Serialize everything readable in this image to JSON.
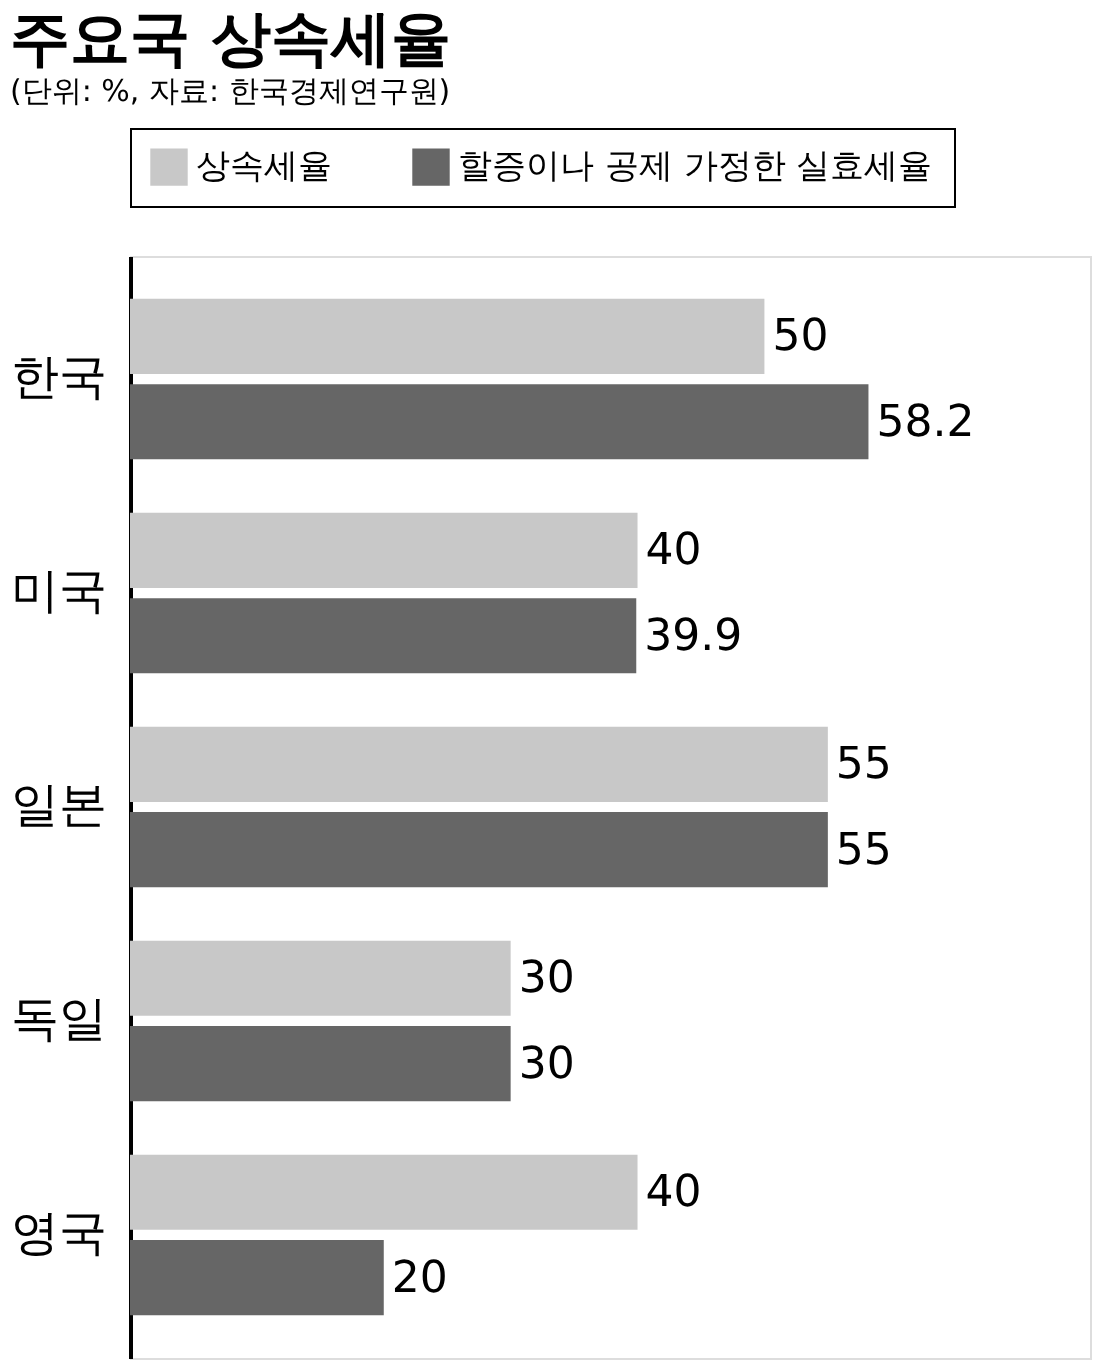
{
  "chart_data": {
    "type": "bar",
    "orientation": "horizontal",
    "title": "주요국 상속세율",
    "subtitle": "(단위: %, 자료: 한국경제연구원)",
    "categories": [
      "한국",
      "미국",
      "일본",
      "독일",
      "영국"
    ],
    "series": [
      {
        "name": "상속세율",
        "color": "#c8c8c8",
        "values": [
          50,
          40,
          55,
          30,
          40
        ]
      },
      {
        "name": "할증이나 공제 가정한 실효세율",
        "color": "#666666",
        "values": [
          58.2,
          39.9,
          55,
          30,
          20
        ]
      }
    ],
    "data_labels": true,
    "legend": "top"
  }
}
